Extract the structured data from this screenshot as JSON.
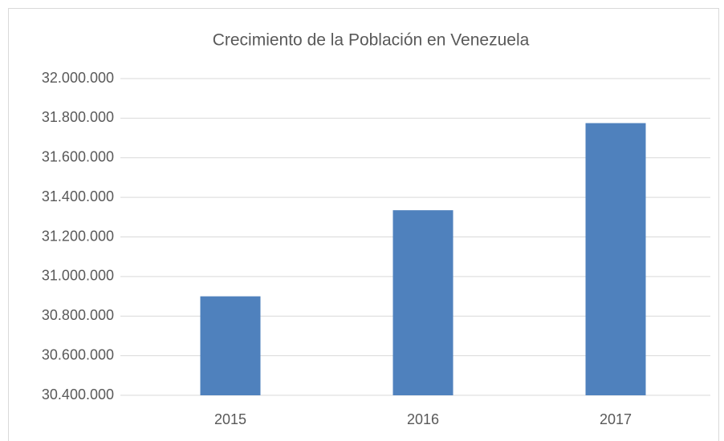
{
  "chart_data": {
    "type": "bar",
    "title": "Crecimiento de la Población en Venezuela",
    "categories": [
      "2015",
      "2016",
      "2017"
    ],
    "values": [
      30900000,
      31335000,
      31775000
    ],
    "color": "#4f81bd",
    "ylim": [
      30400000,
      32000000
    ],
    "yticks": [
      {
        "value": 30400000,
        "label": "30.400.000"
      },
      {
        "value": 30600000,
        "label": "30.600.000"
      },
      {
        "value": 30800000,
        "label": "30.800.000"
      },
      {
        "value": 31000000,
        "label": "31.000.000"
      },
      {
        "value": 31200000,
        "label": "31.200.000"
      },
      {
        "value": 31400000,
        "label": "31.400.000"
      },
      {
        "value": 31600000,
        "label": "31.600.000"
      },
      {
        "value": 31800000,
        "label": "31.800.000"
      },
      {
        "value": 32000000,
        "label": "32.000.000"
      }
    ],
    "grid": true
  }
}
